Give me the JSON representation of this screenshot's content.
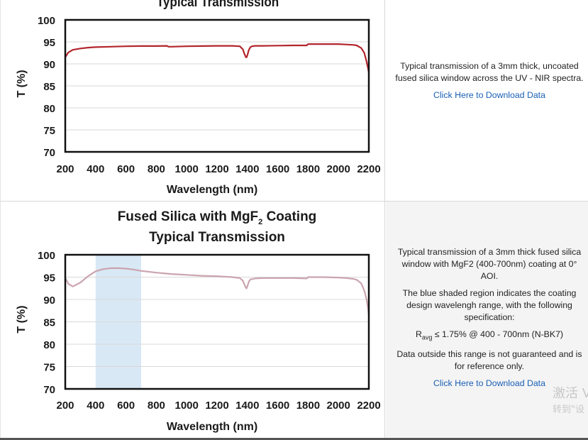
{
  "chart_data": [
    {
      "type": "line",
      "title": "Typical Transmission",
      "xlabel": "Wavelength (nm)",
      "ylabel": "T (%)",
      "xlim": [
        200,
        2200
      ],
      "ylim": [
        70,
        100
      ],
      "xticks": [
        "200",
        "400",
        "600",
        "800",
        "1000",
        "1200",
        "1400",
        "1600",
        "1800",
        "2000",
        "2200"
      ],
      "yticks": [
        "100",
        "95",
        "90",
        "85",
        "80",
        "75",
        "70"
      ],
      "grid": true,
      "line_color": "#b3262d",
      "x": [
        200,
        220,
        250,
        300,
        350,
        400,
        500,
        600,
        700,
        800,
        870,
        880,
        900,
        1000,
        1100,
        1200,
        1300,
        1350,
        1370,
        1380,
        1390,
        1395,
        1400,
        1410,
        1420,
        1430,
        1450,
        1500,
        1600,
        1700,
        1790,
        1800,
        1810,
        1900,
        2000,
        2050,
        2100,
        2120,
        2150,
        2170,
        2185,
        2195,
        2200
      ],
      "y": [
        91.5,
        92.6,
        93.2,
        93.5,
        93.7,
        93.8,
        93.9,
        94.0,
        94.05,
        94.05,
        94.1,
        93.9,
        93.9,
        94.0,
        94.05,
        94.1,
        94.1,
        94.0,
        93.3,
        92.3,
        91.5,
        91.5,
        92.0,
        93.2,
        93.8,
        94.0,
        94.1,
        94.1,
        94.15,
        94.2,
        94.2,
        94.5,
        94.5,
        94.5,
        94.5,
        94.4,
        94.3,
        94.2,
        93.6,
        92.5,
        90.5,
        89.0,
        88.0
      ]
    },
    {
      "type": "line",
      "title": "Fused Silica with MgF",
      "title_subscript": "2",
      "title_suffix": " Coating",
      "subtitle": "Typical Transmission",
      "xlabel": "Wavelength (nm)",
      "ylabel": "T (%)",
      "xlim": [
        200,
        2200
      ],
      "ylim": [
        70,
        100
      ],
      "xticks": [
        "200",
        "400",
        "600",
        "800",
        "1000",
        "1200",
        "1400",
        "1600",
        "1800",
        "2000",
        "2200"
      ],
      "yticks": [
        "100",
        "95",
        "90",
        "85",
        "80",
        "75",
        "70"
      ],
      "grid": true,
      "line_color": "#caa4ae",
      "shade_color": "#d9e8f5",
      "shaded_range": [
        400,
        700
      ],
      "x": [
        200,
        220,
        250,
        300,
        350,
        400,
        450,
        500,
        550,
        600,
        650,
        700,
        800,
        900,
        1000,
        1100,
        1200,
        1300,
        1350,
        1370,
        1380,
        1390,
        1395,
        1400,
        1410,
        1420,
        1450,
        1500,
        1600,
        1700,
        1790,
        1800,
        1810,
        1900,
        2000,
        2050,
        2100,
        2120,
        2150,
        2170,
        2185,
        2195,
        2200
      ],
      "y": [
        94.8,
        93.5,
        92.9,
        93.8,
        95.2,
        96.3,
        96.8,
        97.0,
        97.0,
        96.9,
        96.7,
        96.4,
        96.0,
        95.7,
        95.5,
        95.3,
        95.2,
        95.0,
        94.8,
        94.2,
        93.4,
        92.6,
        92.5,
        93.0,
        94.0,
        94.5,
        94.7,
        94.8,
        94.8,
        94.8,
        94.7,
        95.0,
        95.0,
        95.0,
        94.9,
        94.8,
        94.6,
        94.4,
        93.6,
        92.0,
        90.0,
        88.0,
        86.5
      ]
    }
  ],
  "panels": [
    {
      "description": "Typical transmission of a 3mm thick, uncoated fused silica window across the UV - NIR spectra.",
      "download_link": "Click Here to Download Data"
    },
    {
      "description_1": "Typical transmission of a 3mm thick fused silica window with MgF2 (400-700nm) coating at 0° AOI.",
      "description_2": "The blue shaded region indicates the coating design wavelengh range, with the following specification:",
      "spec_prefix": "R",
      "spec_subscript": "avg",
      "spec_suffix": " ≤ 1.75% @ 400 - 700nm (N-BK7)",
      "description_3": "Data outside this range is not guaranteed and is for reference only.",
      "download_link": "Click Here to Download Data"
    }
  ],
  "watermark": {
    "line1": "激活 V",
    "line2": "转到\"设"
  }
}
